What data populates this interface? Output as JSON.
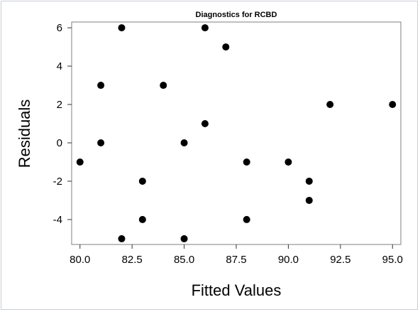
{
  "chart_data": {
    "type": "scatter",
    "title": "Diagnostics for RCBD",
    "xlabel": "Fitted Values",
    "ylabel": "Residuals",
    "xlim": [
      79.6,
      95.4
    ],
    "ylim": [
      -5.3,
      6.3
    ],
    "grid": false,
    "x_ticks": [
      "80.0",
      "82.5",
      "85.0",
      "87.5",
      "90.0",
      "92.5",
      "95.0"
    ],
    "y_ticks": [
      "-4",
      "-2",
      "0",
      "2",
      "4",
      "6"
    ],
    "marker_color": "#000000",
    "points": [
      {
        "x": 80,
        "y": -1
      },
      {
        "x": 81,
        "y": 3
      },
      {
        "x": 81,
        "y": 0
      },
      {
        "x": 82,
        "y": 6
      },
      {
        "x": 82,
        "y": -5
      },
      {
        "x": 83,
        "y": -2
      },
      {
        "x": 83,
        "y": -4
      },
      {
        "x": 84,
        "y": 3
      },
      {
        "x": 85,
        "y": 0
      },
      {
        "x": 85,
        "y": -5
      },
      {
        "x": 86,
        "y": 6
      },
      {
        "x": 86,
        "y": 1
      },
      {
        "x": 87,
        "y": 5
      },
      {
        "x": 88,
        "y": -1
      },
      {
        "x": 88,
        "y": -4
      },
      {
        "x": 90,
        "y": -1
      },
      {
        "x": 91,
        "y": -2
      },
      {
        "x": 91,
        "y": -3
      },
      {
        "x": 92,
        "y": 2
      },
      {
        "x": 95,
        "y": 2
      }
    ]
  }
}
